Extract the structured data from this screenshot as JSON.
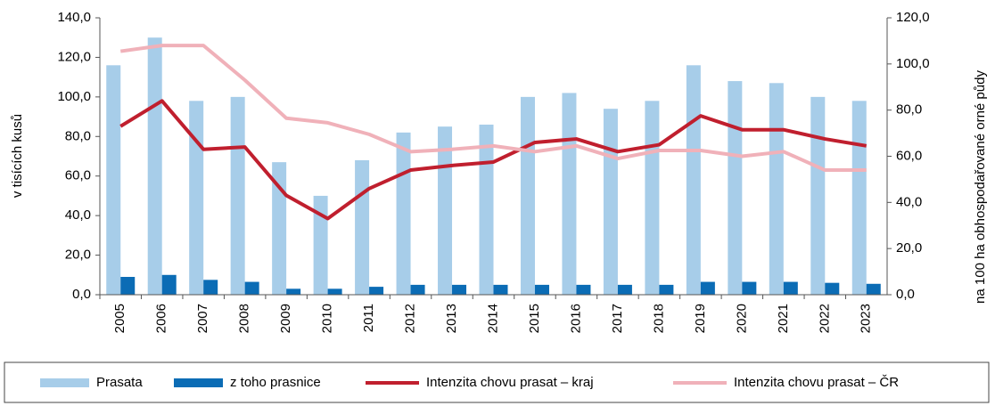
{
  "chart_data": {
    "type": "bar",
    "ylabel": "v tisících kusů",
    "y2label": "na 100 ha obhospodařované orné půdy",
    "categories": [
      "2005",
      "2006",
      "2007",
      "2008",
      "2009",
      "2010",
      "2011",
      "2012",
      "2013",
      "2014",
      "2015",
      "2016",
      "2017",
      "2018",
      "2019",
      "2020",
      "2021",
      "2022",
      "2023"
    ],
    "series": [
      {
        "name": "Prasata",
        "type": "bar",
        "color": "#a7cde9",
        "values": [
          116,
          130,
          98,
          100,
          67,
          50,
          68,
          82,
          85,
          86,
          100,
          102,
          94,
          98,
          116,
          108,
          107,
          100,
          98
        ]
      },
      {
        "name": "z toho prasnice",
        "type": "bar",
        "color": "#0b6cb5",
        "values": [
          9,
          10,
          7.5,
          6.5,
          3,
          3,
          4,
          5,
          5,
          5,
          5,
          5,
          5,
          5,
          6.5,
          6.5,
          6.5,
          6,
          5.5
        ]
      },
      {
        "name": "Intenzita chovu prasat – kraj",
        "type": "line",
        "axis": "y2",
        "color": "#c01f2e",
        "values": [
          73,
          84,
          63,
          64,
          43,
          33,
          46,
          54,
          56,
          57.5,
          66,
          67.5,
          62,
          65,
          77.5,
          71.5,
          71.5,
          67.5,
          64.5
        ]
      },
      {
        "name": "Intenzita chovu prasat – ČR",
        "type": "line",
        "axis": "y2",
        "color": "#f0b1b9",
        "values": [
          105.5,
          108,
          108,
          93,
          76.5,
          74.5,
          69.5,
          62,
          63,
          64.5,
          62,
          64.5,
          59,
          62.5,
          62.5,
          60,
          62,
          54,
          54
        ]
      }
    ],
    "ylim": [
      0,
      140
    ],
    "yticks": [
      {
        "value": 0,
        "label": "0,0"
      },
      {
        "value": 20,
        "label": "20,0"
      },
      {
        "value": 40,
        "label": "40,0"
      },
      {
        "value": 60,
        "label": "60,0"
      },
      {
        "value": 80,
        "label": "80,0"
      },
      {
        "value": 100,
        "label": "100,0"
      },
      {
        "value": 120,
        "label": "120,0"
      },
      {
        "value": 140,
        "label": "140,0"
      }
    ],
    "y2lim": [
      0,
      120
    ],
    "y2ticks": [
      {
        "value": 0,
        "label": "0,0"
      },
      {
        "value": 20,
        "label": "20,0"
      },
      {
        "value": 40,
        "label": "40,0"
      },
      {
        "value": 60,
        "label": "60,0"
      },
      {
        "value": 80,
        "label": "80,0"
      },
      {
        "value": 100,
        "label": "100,0"
      },
      {
        "value": 120,
        "label": "120,0"
      }
    ],
    "legend": "bottom"
  }
}
